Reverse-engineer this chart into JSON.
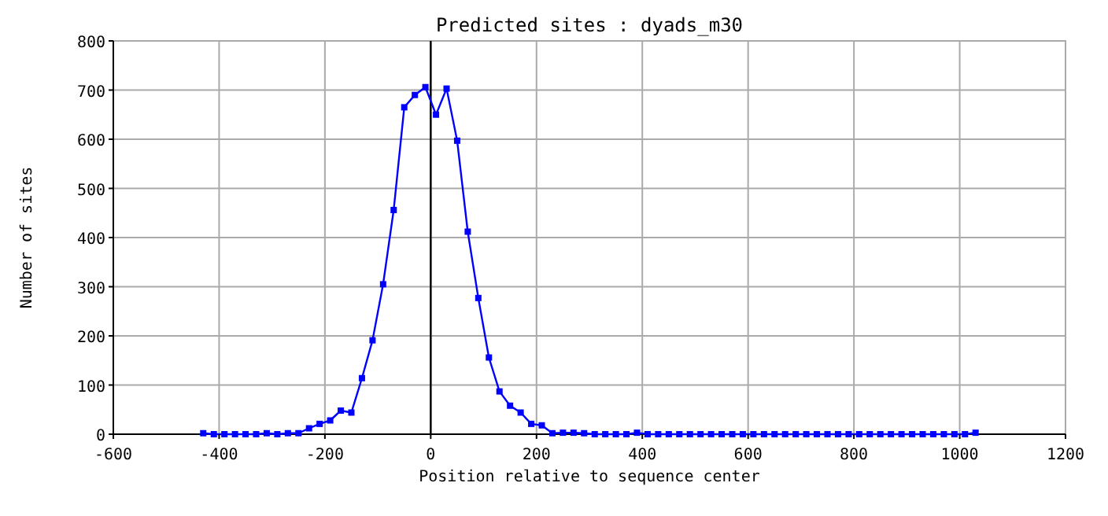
{
  "chart_data": {
    "type": "line",
    "title": "Predicted sites : dyads_m30",
    "xlabel": "Position relative to sequence center",
    "ylabel": "Number of sites",
    "x": [
      -430,
      -410,
      -390,
      -370,
      -350,
      -330,
      -310,
      -290,
      -270,
      -250,
      -230,
      -210,
      -190,
      -170,
      -150,
      -130,
      -110,
      -90,
      -70,
      -50,
      -30,
      -10,
      10,
      30,
      50,
      70,
      90,
      110,
      130,
      150,
      170,
      190,
      210,
      230,
      250,
      270,
      290,
      310,
      330,
      350,
      370,
      390,
      410,
      430,
      450,
      470,
      490,
      510,
      530,
      550,
      570,
      590,
      610,
      630,
      650,
      670,
      690,
      710,
      730,
      750,
      770,
      790,
      810,
      830,
      850,
      870,
      890,
      910,
      930,
      950,
      970,
      990,
      1010,
      1030
    ],
    "series": [
      {
        "color": "#0000ff",
        "values": [
          2,
          0,
          0,
          0,
          0,
          0,
          2,
          0,
          2,
          2,
          12,
          21,
          28,
          48,
          44,
          114,
          191,
          305,
          456,
          665,
          690,
          706,
          650,
          703,
          597,
          412,
          277,
          156,
          87,
          58,
          44,
          21,
          18,
          2,
          3,
          3,
          2,
          0,
          0,
          0,
          0,
          3,
          0,
          0,
          0,
          0,
          0,
          0,
          0,
          0,
          0,
          0,
          0,
          0,
          0,
          0,
          0,
          0,
          0,
          0,
          0,
          0,
          0,
          0,
          0,
          0,
          0,
          0,
          0,
          0,
          0,
          0,
          0,
          3
        ]
      }
    ],
    "xlim": [
      -600,
      1200
    ],
    "xticks": [
      -600,
      -400,
      -200,
      0,
      200,
      400,
      600,
      800,
      1000,
      1200
    ],
    "ylim": [
      0,
      800
    ],
    "yticks": [
      0,
      100,
      200,
      300,
      400,
      500,
      600,
      700,
      800
    ],
    "ref_lines": [
      {
        "axis": "x",
        "value": 0,
        "color": "#000000"
      }
    ],
    "grid": true,
    "marker": "square",
    "line_style": "solid"
  }
}
